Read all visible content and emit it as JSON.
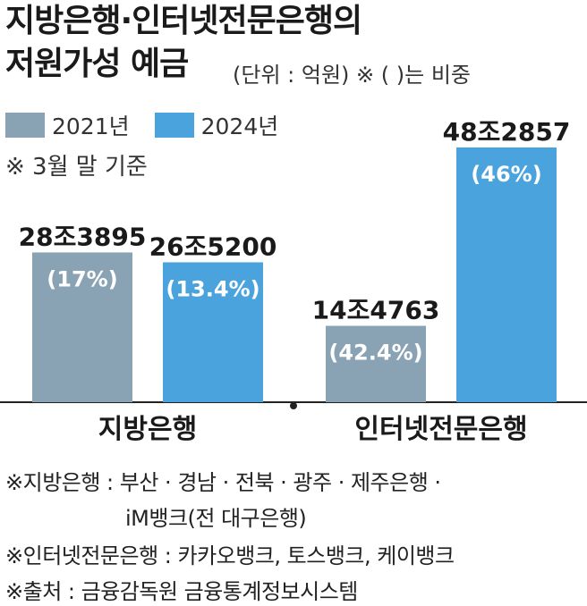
{
  "header": {
    "title_line1": "지방은행·인터넷전문은행의",
    "title_line2": "저원가성 예금",
    "unit_note": "(단위 : 억원)  ※ (  )는 비중",
    "period_note": "※ 3월 말 기준"
  },
  "colors": {
    "series_2021": "#8aa3b4",
    "series_2024": "#4ba3de",
    "pct_label": "#ffffff",
    "axis": "#222222"
  },
  "chart_data": {
    "type": "bar",
    "categories": [
      "지방은행",
      "인터넷전문은행"
    ],
    "series": [
      {
        "name": "2021년",
        "values": [
          283895,
          144763
        ],
        "labels": [
          "28조3895",
          "14조4763"
        ],
        "pct_labels": [
          "(17%)",
          "(42.4%)"
        ]
      },
      {
        "name": "2024년",
        "values": [
          265200,
          482857
        ],
        "labels": [
          "26조5200",
          "48조2857"
        ],
        "pct_labels": [
          "(13.4%)",
          "(46%)"
        ]
      }
    ],
    "ylim": [
      0,
      482857
    ],
    "grid": false,
    "legend_position": "top-left"
  },
  "footnotes": [
    "※지방은행 : 부산 · 경남 · 전북 · 광주 · 제주은행 ·",
    "iM뱅크(전 대구은행)",
    "※인터넷전문은행 : 카카오뱅크, 토스뱅크, 케이뱅크",
    "※출처 : 금융감독원 금융통계정보시스템"
  ]
}
